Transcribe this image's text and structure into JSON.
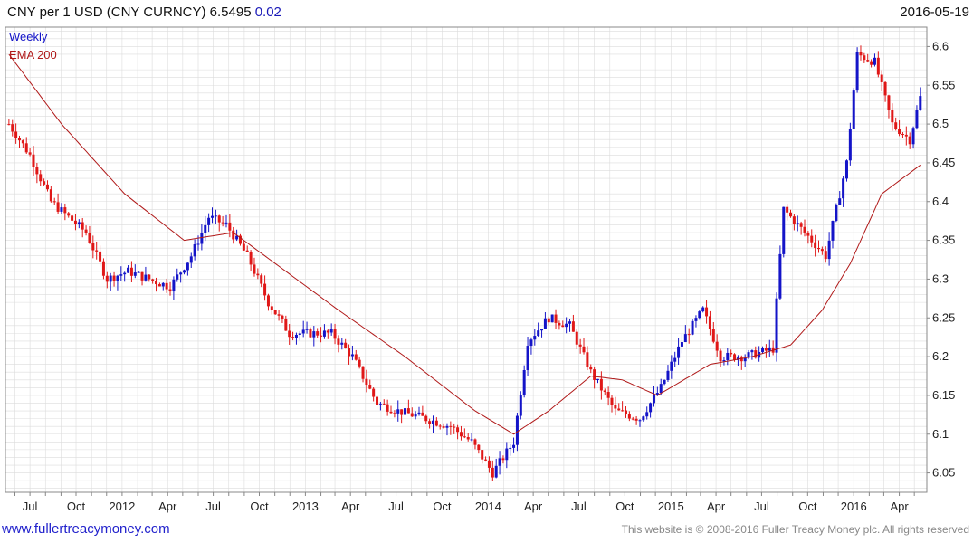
{
  "header": {
    "title": "CNY per 1 USD (CNY CURNCY) 6.5495",
    "change": "0.02",
    "date": "2016-05-19"
  },
  "footer": {
    "site": "www.fullertreacymoney.com",
    "copyright": "This website is © 2008-2016 Fuller Treacy Money plc. All rights reserved"
  },
  "colors": {
    "up": "#1414c8",
    "down": "#e01818",
    "ema": "#b01818",
    "grid": "#dcdcdc"
  },
  "chart_data": {
    "type": "line",
    "title": "CNY per 1 USD (CNY CURNCY) 6.5495",
    "legend": [
      "Weekly",
      "EMA 200"
    ],
    "legend_position": "top-left",
    "grid": true,
    "ylim": [
      6.025,
      6.625
    ],
    "y_ticks": [
      "6.6",
      "6.55",
      "6.5",
      "6.45",
      "6.4",
      "6.35",
      "6.3",
      "6.25",
      "6.2",
      "6.15",
      "6.1",
      "6.05"
    ],
    "x_ticks": [
      "Jul",
      "Oct",
      "2012",
      "Apr",
      "Jul",
      "Oct",
      "2013",
      "Apr",
      "Jul",
      "Oct",
      "2014",
      "Apr",
      "Jul",
      "Oct",
      "2015",
      "Apr",
      "Jul",
      "Oct",
      "2016",
      "Apr"
    ],
    "series": [
      {
        "name": "Weekly",
        "key_points": [
          [
            "2011-05-20",
            6.5
          ],
          [
            "2011-07-01",
            6.46
          ],
          [
            "2011-08-12",
            6.4
          ],
          [
            "2011-10-21",
            6.36
          ],
          [
            "2011-12-02",
            6.3
          ],
          [
            "2012-01-13",
            6.31
          ],
          [
            "2012-02-24",
            6.3
          ],
          [
            "2012-04-06",
            6.29
          ],
          [
            "2012-05-18",
            6.33
          ],
          [
            "2012-06-22",
            6.38
          ],
          [
            "2012-07-27",
            6.37
          ],
          [
            "2012-09-07",
            6.33
          ],
          [
            "2012-10-19",
            6.27
          ],
          [
            "2012-11-30",
            6.23
          ],
          [
            "2013-01-11",
            6.23
          ],
          [
            "2013-02-22",
            6.23
          ],
          [
            "2013-04-05",
            6.2
          ],
          [
            "2013-05-24",
            6.14
          ],
          [
            "2013-07-05",
            6.13
          ],
          [
            "2013-08-30",
            6.12
          ],
          [
            "2013-10-18",
            6.11
          ],
          [
            "2013-11-29",
            6.09
          ],
          [
            "2014-01-10",
            6.05
          ],
          [
            "2014-02-21",
            6.09
          ],
          [
            "2014-03-21",
            6.22
          ],
          [
            "2014-05-02",
            6.25
          ],
          [
            "2014-06-13",
            6.24
          ],
          [
            "2014-07-25",
            6.18
          ],
          [
            "2014-09-12",
            6.13
          ],
          [
            "2014-10-31",
            6.12
          ],
          [
            "2014-12-12",
            6.16
          ],
          [
            "2015-01-23",
            6.22
          ],
          [
            "2015-03-06",
            6.26
          ],
          [
            "2015-04-10",
            6.2
          ],
          [
            "2015-05-29",
            6.2
          ],
          [
            "2015-07-24",
            6.21
          ],
          [
            "2015-08-14",
            6.39
          ],
          [
            "2015-09-25",
            6.36
          ],
          [
            "2015-11-06",
            6.33
          ],
          [
            "2015-12-18",
            6.45
          ],
          [
            "2016-01-08",
            6.59
          ],
          [
            "2016-02-12",
            6.58
          ],
          [
            "2016-03-18",
            6.5
          ],
          [
            "2016-04-22",
            6.48
          ],
          [
            "2016-05-19",
            6.55
          ]
        ]
      },
      {
        "name": "EMA 200",
        "key_points": [
          [
            "2011-05-20",
            6.59
          ],
          [
            "2011-09-02",
            6.5
          ],
          [
            "2012-01-06",
            6.41
          ],
          [
            "2012-05-04",
            6.35
          ],
          [
            "2012-08-10",
            6.36
          ],
          [
            "2012-11-02",
            6.32
          ],
          [
            "2013-03-08",
            6.26
          ],
          [
            "2013-07-19",
            6.2
          ],
          [
            "2013-12-06",
            6.13
          ],
          [
            "2014-02-21",
            6.1
          ],
          [
            "2014-05-02",
            6.13
          ],
          [
            "2014-07-25",
            6.175
          ],
          [
            "2014-09-26",
            6.17
          ],
          [
            "2014-12-05",
            6.15
          ],
          [
            "2015-03-20",
            6.19
          ],
          [
            "2015-06-12",
            6.2
          ],
          [
            "2015-08-28",
            6.215
          ],
          [
            "2015-10-30",
            6.26
          ],
          [
            "2015-12-25",
            6.32
          ],
          [
            "2016-02-26",
            6.41
          ],
          [
            "2016-05-19",
            6.45
          ]
        ]
      }
    ]
  }
}
